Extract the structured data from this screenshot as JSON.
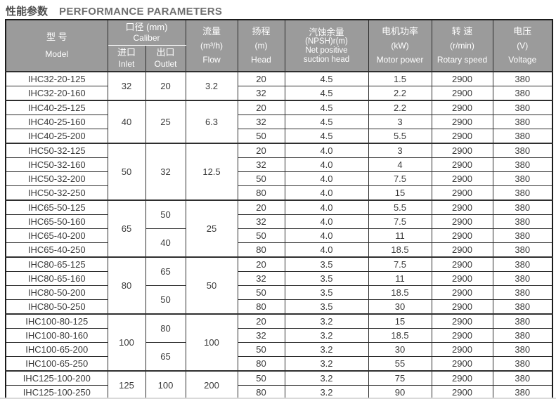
{
  "title": {
    "zh": "性能参数",
    "en": "PERFORMANCE PARAMETERS"
  },
  "colors": {
    "header_bg": "#9b9b9b",
    "header_text": "#ffffff",
    "grid_border": "#2e2e2e",
    "title_zh": "#4d4d4d",
    "title_en": "#6f6f6f",
    "body_text": "#3a3a3a"
  },
  "table": {
    "headers": {
      "model_zh": "型 号",
      "model_en": "Model",
      "caliber_zh": "口径 (mm)",
      "caliber_en": "Caliber",
      "inlet_zh": "进口",
      "inlet_en": "Inlet",
      "outlet_zh": "出口",
      "outlet_en": "Outlet",
      "flow_zh": "流量",
      "flow_unit": "(m³/h)",
      "flow_en": "Flow",
      "head_zh": "扬程",
      "head_unit": "(m)",
      "head_en": "Head",
      "npsh_zh": "汽蚀余量",
      "npsh_unit": "(NPSH)r(m)",
      "npsh_en1": "Net positive",
      "npsh_en2": "suction head",
      "motor_zh": "电机功率",
      "motor_unit": "(kW)",
      "motor_en": "Motor power",
      "speed_zh": "转 速",
      "speed_unit": "(r/min)",
      "speed_en": "Rotary speed",
      "voltage_zh": "电压",
      "voltage_unit": "(V)",
      "voltage_en": "Voltage"
    },
    "row_columns": [
      "model",
      "head_m",
      "npsh_m",
      "motor_power_kw",
      "rotary_speed_rpm",
      "voltage_v"
    ],
    "groups": [
      {
        "inlet_mm": "32",
        "flow_m3h": "3.2",
        "outlets": [
          {
            "value_mm": "20",
            "rowspan": 2
          }
        ],
        "rows": [
          [
            "IHC32-20-125",
            "20",
            "4.5",
            "1.5",
            "2900",
            "380"
          ],
          [
            "IHC32-20-160",
            "32",
            "4.5",
            "2.2",
            "2900",
            "380"
          ]
        ]
      },
      {
        "inlet_mm": "40",
        "flow_m3h": "6.3",
        "outlets": [
          {
            "value_mm": "25",
            "rowspan": 3
          }
        ],
        "rows": [
          [
            "IHC40-25-125",
            "20",
            "4.5",
            "2.2",
            "2900",
            "380"
          ],
          [
            "IHC40-25-160",
            "32",
            "4.5",
            "3",
            "2900",
            "380"
          ],
          [
            "IHC40-25-200",
            "50",
            "4.5",
            "5.5",
            "2900",
            "380"
          ]
        ]
      },
      {
        "inlet_mm": "50",
        "flow_m3h": "12.5",
        "outlets": [
          {
            "value_mm": "32",
            "rowspan": 4
          }
        ],
        "rows": [
          [
            "IHC50-32-125",
            "20",
            "4.0",
            "3",
            "2900",
            "380"
          ],
          [
            "IHC50-32-160",
            "32",
            "4.0",
            "4",
            "2900",
            "380"
          ],
          [
            "IHC50-32-200",
            "50",
            "4.0",
            "7.5",
            "2900",
            "380"
          ],
          [
            "IHC50-32-250",
            "80",
            "4.0",
            "15",
            "2900",
            "380"
          ]
        ]
      },
      {
        "inlet_mm": "65",
        "flow_m3h": "25",
        "outlets": [
          {
            "value_mm": "50",
            "rowspan": 2
          },
          {
            "value_mm": "40",
            "rowspan": 2
          }
        ],
        "rows": [
          [
            "IHC65-50-125",
            "20",
            "4.0",
            "5.5",
            "2900",
            "380"
          ],
          [
            "IHC65-50-160",
            "32",
            "4.0",
            "7.5",
            "2900",
            "380"
          ],
          [
            "IHC65-40-200",
            "50",
            "4.0",
            "11",
            "2900",
            "380"
          ],
          [
            "IHC65-40-250",
            "80",
            "4.0",
            "18.5",
            "2900",
            "380"
          ]
        ]
      },
      {
        "inlet_mm": "80",
        "flow_m3h": "50",
        "outlets": [
          {
            "value_mm": "65",
            "rowspan": 2
          },
          {
            "value_mm": "50",
            "rowspan": 2
          }
        ],
        "rows": [
          [
            "IHC80-65-125",
            "20",
            "3.5",
            "7.5",
            "2900",
            "380"
          ],
          [
            "IHC80-65-160",
            "32",
            "3.5",
            "11",
            "2900",
            "380"
          ],
          [
            "IHC80-50-200",
            "50",
            "3.5",
            "18.5",
            "2900",
            "380"
          ],
          [
            "IHC80-50-250",
            "80",
            "3.5",
            "30",
            "2900",
            "380"
          ]
        ]
      },
      {
        "inlet_mm": "100",
        "flow_m3h": "100",
        "outlets": [
          {
            "value_mm": "80",
            "rowspan": 2
          },
          {
            "value_mm": "65",
            "rowspan": 2
          }
        ],
        "rows": [
          [
            "IHC100-80-125",
            "20",
            "3.2",
            "15",
            "2900",
            "380"
          ],
          [
            "IHC100-80-160",
            "32",
            "3.2",
            "18.5",
            "2900",
            "380"
          ],
          [
            "IHC100-65-200",
            "50",
            "3.2",
            "30",
            "2900",
            "380"
          ],
          [
            "IHC100-65-250",
            "80",
            "3.2",
            "55",
            "2900",
            "380"
          ]
        ]
      },
      {
        "inlet_mm": "125",
        "flow_m3h": "200",
        "outlets": [
          {
            "value_mm": "100",
            "rowspan": 2
          }
        ],
        "rows": [
          [
            "IHC125-100-200",
            "50",
            "3.2",
            "75",
            "2900",
            "380"
          ],
          [
            "IHC125-100-250",
            "80",
            "3.2",
            "90",
            "2900",
            "380"
          ]
        ]
      }
    ]
  }
}
